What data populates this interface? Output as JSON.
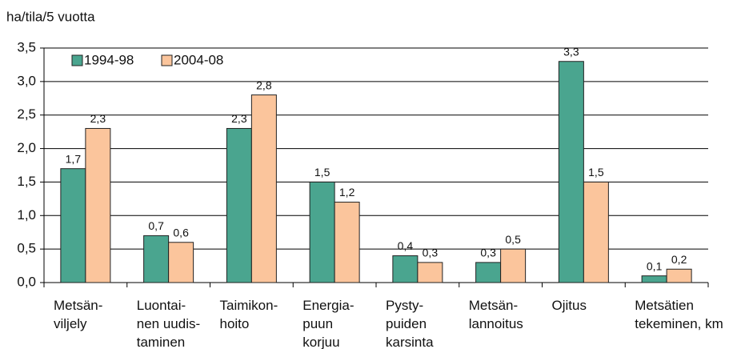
{
  "chart_data": {
    "type": "bar",
    "title": "ha/tila/5 vuotta",
    "categories": [
      [
        "Metsän-",
        "viljely"
      ],
      [
        "Luontai-",
        "nen uudis-",
        "taminen"
      ],
      [
        "Taimikon-",
        "hoito"
      ],
      [
        "Energia-",
        "puun",
        "korjuu"
      ],
      [
        "Pysty-",
        "puiden",
        "karsinta"
      ],
      [
        "Metsän-",
        "lannoitus"
      ],
      [
        "Ojitus"
      ],
      [
        "Metsätien",
        "tekeminen, km"
      ]
    ],
    "series": [
      {
        "name": "1994-98",
        "color": "#4aa58f",
        "values": [
          1.7,
          0.7,
          2.3,
          1.5,
          0.4,
          0.3,
          3.3,
          0.1
        ],
        "value_labels": [
          "1,7",
          "0,7",
          "2,3",
          "1,5",
          "0,4",
          "0,3",
          "3,3",
          "0,1"
        ]
      },
      {
        "name": "2004-08",
        "color": "#fbc59c",
        "values": [
          2.3,
          0.6,
          2.8,
          1.2,
          0.3,
          0.5,
          1.5,
          0.2
        ],
        "value_labels": [
          "2,3",
          "0,6",
          "2,8",
          "1,2",
          "0,3",
          "0,5",
          "1,5",
          "0,2"
        ]
      }
    ],
    "ylim": [
      0,
      3.5
    ],
    "yticks": [
      {
        "value": 0,
        "label": "0,0"
      },
      {
        "value": 0.5,
        "label": "0,5"
      },
      {
        "value": 1,
        "label": "1,0"
      },
      {
        "value": 1.5,
        "label": "1,5"
      },
      {
        "value": 2,
        "label": "2,0"
      },
      {
        "value": 2.5,
        "label": "2,5"
      },
      {
        "value": 3,
        "label": "3,0"
      },
      {
        "value": 3.5,
        "label": "3,5"
      }
    ],
    "grid": true,
    "legend": "top-left"
  }
}
